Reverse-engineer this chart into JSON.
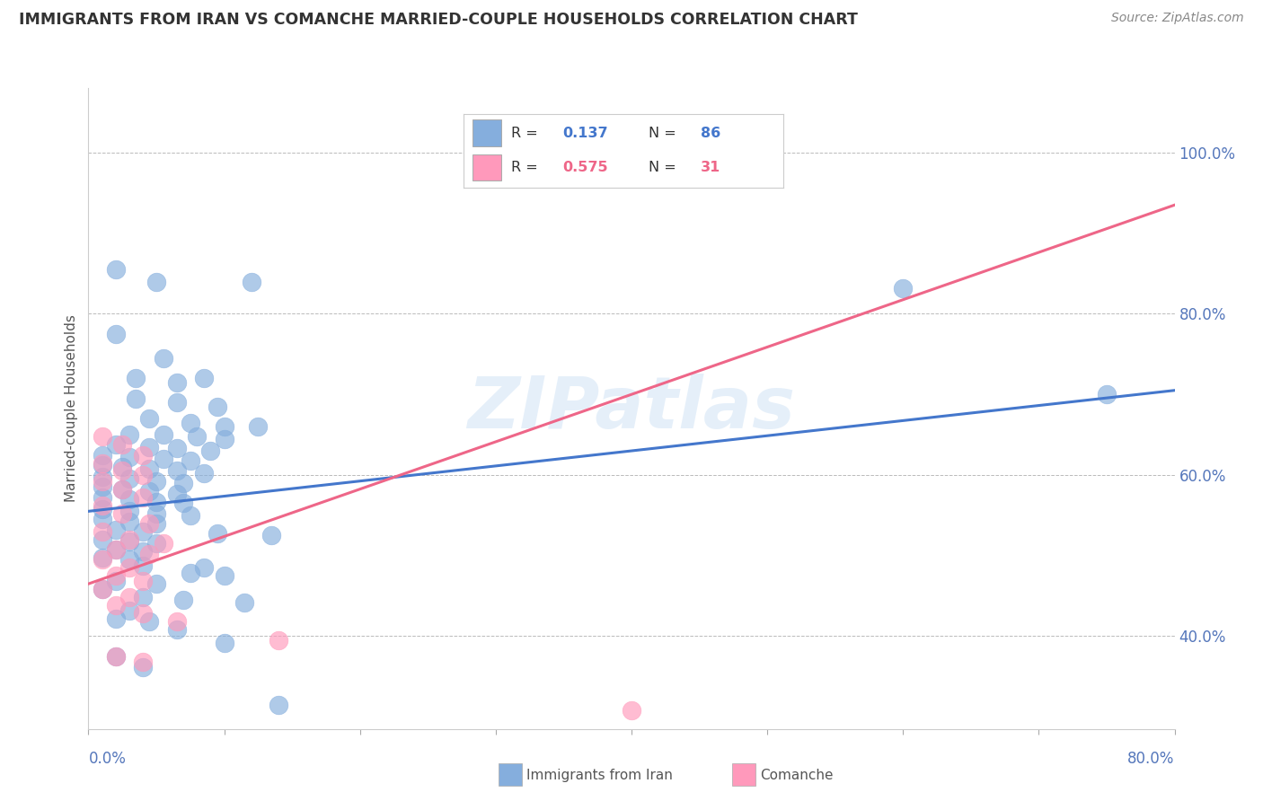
{
  "title": "IMMIGRANTS FROM IRAN VS COMANCHE MARRIED-COUPLE HOUSEHOLDS CORRELATION CHART",
  "source": "Source: ZipAtlas.com",
  "ylabel": "Married-couple Households",
  "legend_blue_R": "0.137",
  "legend_blue_N": "86",
  "legend_pink_R": "0.575",
  "legend_pink_N": "31",
  "legend_blue_label": "Immigrants from Iran",
  "legend_pink_label": "Comanche",
  "y_tick_vals": [
    0.4,
    0.6,
    0.8,
    1.0
  ],
  "xlim": [
    0.0,
    0.8
  ],
  "ylim": [
    0.285,
    1.08
  ],
  "blue_scatter_color": "#85AEDD",
  "pink_scatter_color": "#FF99BB",
  "blue_line_color": "#4477CC",
  "pink_line_color": "#EE6688",
  "blue_trend_x": [
    0.0,
    0.8
  ],
  "blue_trend_y": [
    0.555,
    0.705
  ],
  "pink_trend_x": [
    0.0,
    0.8
  ],
  "pink_trend_y": [
    0.465,
    0.935
  ],
  "watermark": "ZIPatlas",
  "background": "#FFFFFF",
  "grid_color": "#BBBBBB",
  "blue_scatter": [
    [
      0.02,
      0.855
    ],
    [
      0.05,
      0.84
    ],
    [
      0.12,
      0.84
    ],
    [
      0.02,
      0.775
    ],
    [
      0.055,
      0.745
    ],
    [
      0.035,
      0.72
    ],
    [
      0.065,
      0.715
    ],
    [
      0.085,
      0.72
    ],
    [
      0.035,
      0.695
    ],
    [
      0.065,
      0.69
    ],
    [
      0.095,
      0.685
    ],
    [
      0.045,
      0.67
    ],
    [
      0.075,
      0.665
    ],
    [
      0.1,
      0.66
    ],
    [
      0.125,
      0.66
    ],
    [
      0.03,
      0.65
    ],
    [
      0.055,
      0.65
    ],
    [
      0.08,
      0.648
    ],
    [
      0.1,
      0.645
    ],
    [
      0.02,
      0.638
    ],
    [
      0.045,
      0.635
    ],
    [
      0.065,
      0.633
    ],
    [
      0.09,
      0.63
    ],
    [
      0.01,
      0.625
    ],
    [
      0.03,
      0.622
    ],
    [
      0.055,
      0.62
    ],
    [
      0.075,
      0.618
    ],
    [
      0.01,
      0.612
    ],
    [
      0.025,
      0.61
    ],
    [
      0.045,
      0.608
    ],
    [
      0.065,
      0.605
    ],
    [
      0.085,
      0.602
    ],
    [
      0.01,
      0.598
    ],
    [
      0.03,
      0.595
    ],
    [
      0.05,
      0.592
    ],
    [
      0.07,
      0.59
    ],
    [
      0.01,
      0.585
    ],
    [
      0.025,
      0.582
    ],
    [
      0.045,
      0.58
    ],
    [
      0.065,
      0.577
    ],
    [
      0.01,
      0.572
    ],
    [
      0.03,
      0.57
    ],
    [
      0.05,
      0.567
    ],
    [
      0.07,
      0.565
    ],
    [
      0.01,
      0.558
    ],
    [
      0.03,
      0.555
    ],
    [
      0.05,
      0.552
    ],
    [
      0.075,
      0.55
    ],
    [
      0.01,
      0.545
    ],
    [
      0.03,
      0.542
    ],
    [
      0.05,
      0.54
    ],
    [
      0.02,
      0.532
    ],
    [
      0.04,
      0.53
    ],
    [
      0.095,
      0.528
    ],
    [
      0.135,
      0.525
    ],
    [
      0.01,
      0.52
    ],
    [
      0.03,
      0.518
    ],
    [
      0.05,
      0.515
    ],
    [
      0.02,
      0.508
    ],
    [
      0.04,
      0.505
    ],
    [
      0.01,
      0.498
    ],
    [
      0.03,
      0.495
    ],
    [
      0.04,
      0.488
    ],
    [
      0.085,
      0.485
    ],
    [
      0.075,
      0.478
    ],
    [
      0.1,
      0.475
    ],
    [
      0.02,
      0.468
    ],
    [
      0.05,
      0.465
    ],
    [
      0.01,
      0.458
    ],
    [
      0.04,
      0.448
    ],
    [
      0.07,
      0.445
    ],
    [
      0.115,
      0.442
    ],
    [
      0.03,
      0.432
    ],
    [
      0.02,
      0.422
    ],
    [
      0.045,
      0.418
    ],
    [
      0.065,
      0.408
    ],
    [
      0.1,
      0.392
    ],
    [
      0.02,
      0.375
    ],
    [
      0.04,
      0.362
    ],
    [
      0.14,
      0.315
    ],
    [
      0.6,
      0.832
    ],
    [
      0.75,
      0.7
    ]
  ],
  "pink_scatter": [
    [
      0.01,
      0.648
    ],
    [
      0.025,
      0.638
    ],
    [
      0.04,
      0.625
    ],
    [
      0.01,
      0.615
    ],
    [
      0.025,
      0.605
    ],
    [
      0.04,
      0.6
    ],
    [
      0.01,
      0.592
    ],
    [
      0.025,
      0.582
    ],
    [
      0.04,
      0.572
    ],
    [
      0.01,
      0.562
    ],
    [
      0.025,
      0.552
    ],
    [
      0.045,
      0.54
    ],
    [
      0.01,
      0.53
    ],
    [
      0.03,
      0.52
    ],
    [
      0.055,
      0.515
    ],
    [
      0.02,
      0.508
    ],
    [
      0.045,
      0.502
    ],
    [
      0.01,
      0.495
    ],
    [
      0.03,
      0.485
    ],
    [
      0.02,
      0.475
    ],
    [
      0.04,
      0.468
    ],
    [
      0.01,
      0.458
    ],
    [
      0.03,
      0.448
    ],
    [
      0.02,
      0.438
    ],
    [
      0.04,
      0.428
    ],
    [
      0.065,
      0.418
    ],
    [
      0.14,
      0.395
    ],
    [
      0.02,
      0.375
    ],
    [
      0.04,
      0.368
    ],
    [
      0.4,
      0.308
    ]
  ]
}
